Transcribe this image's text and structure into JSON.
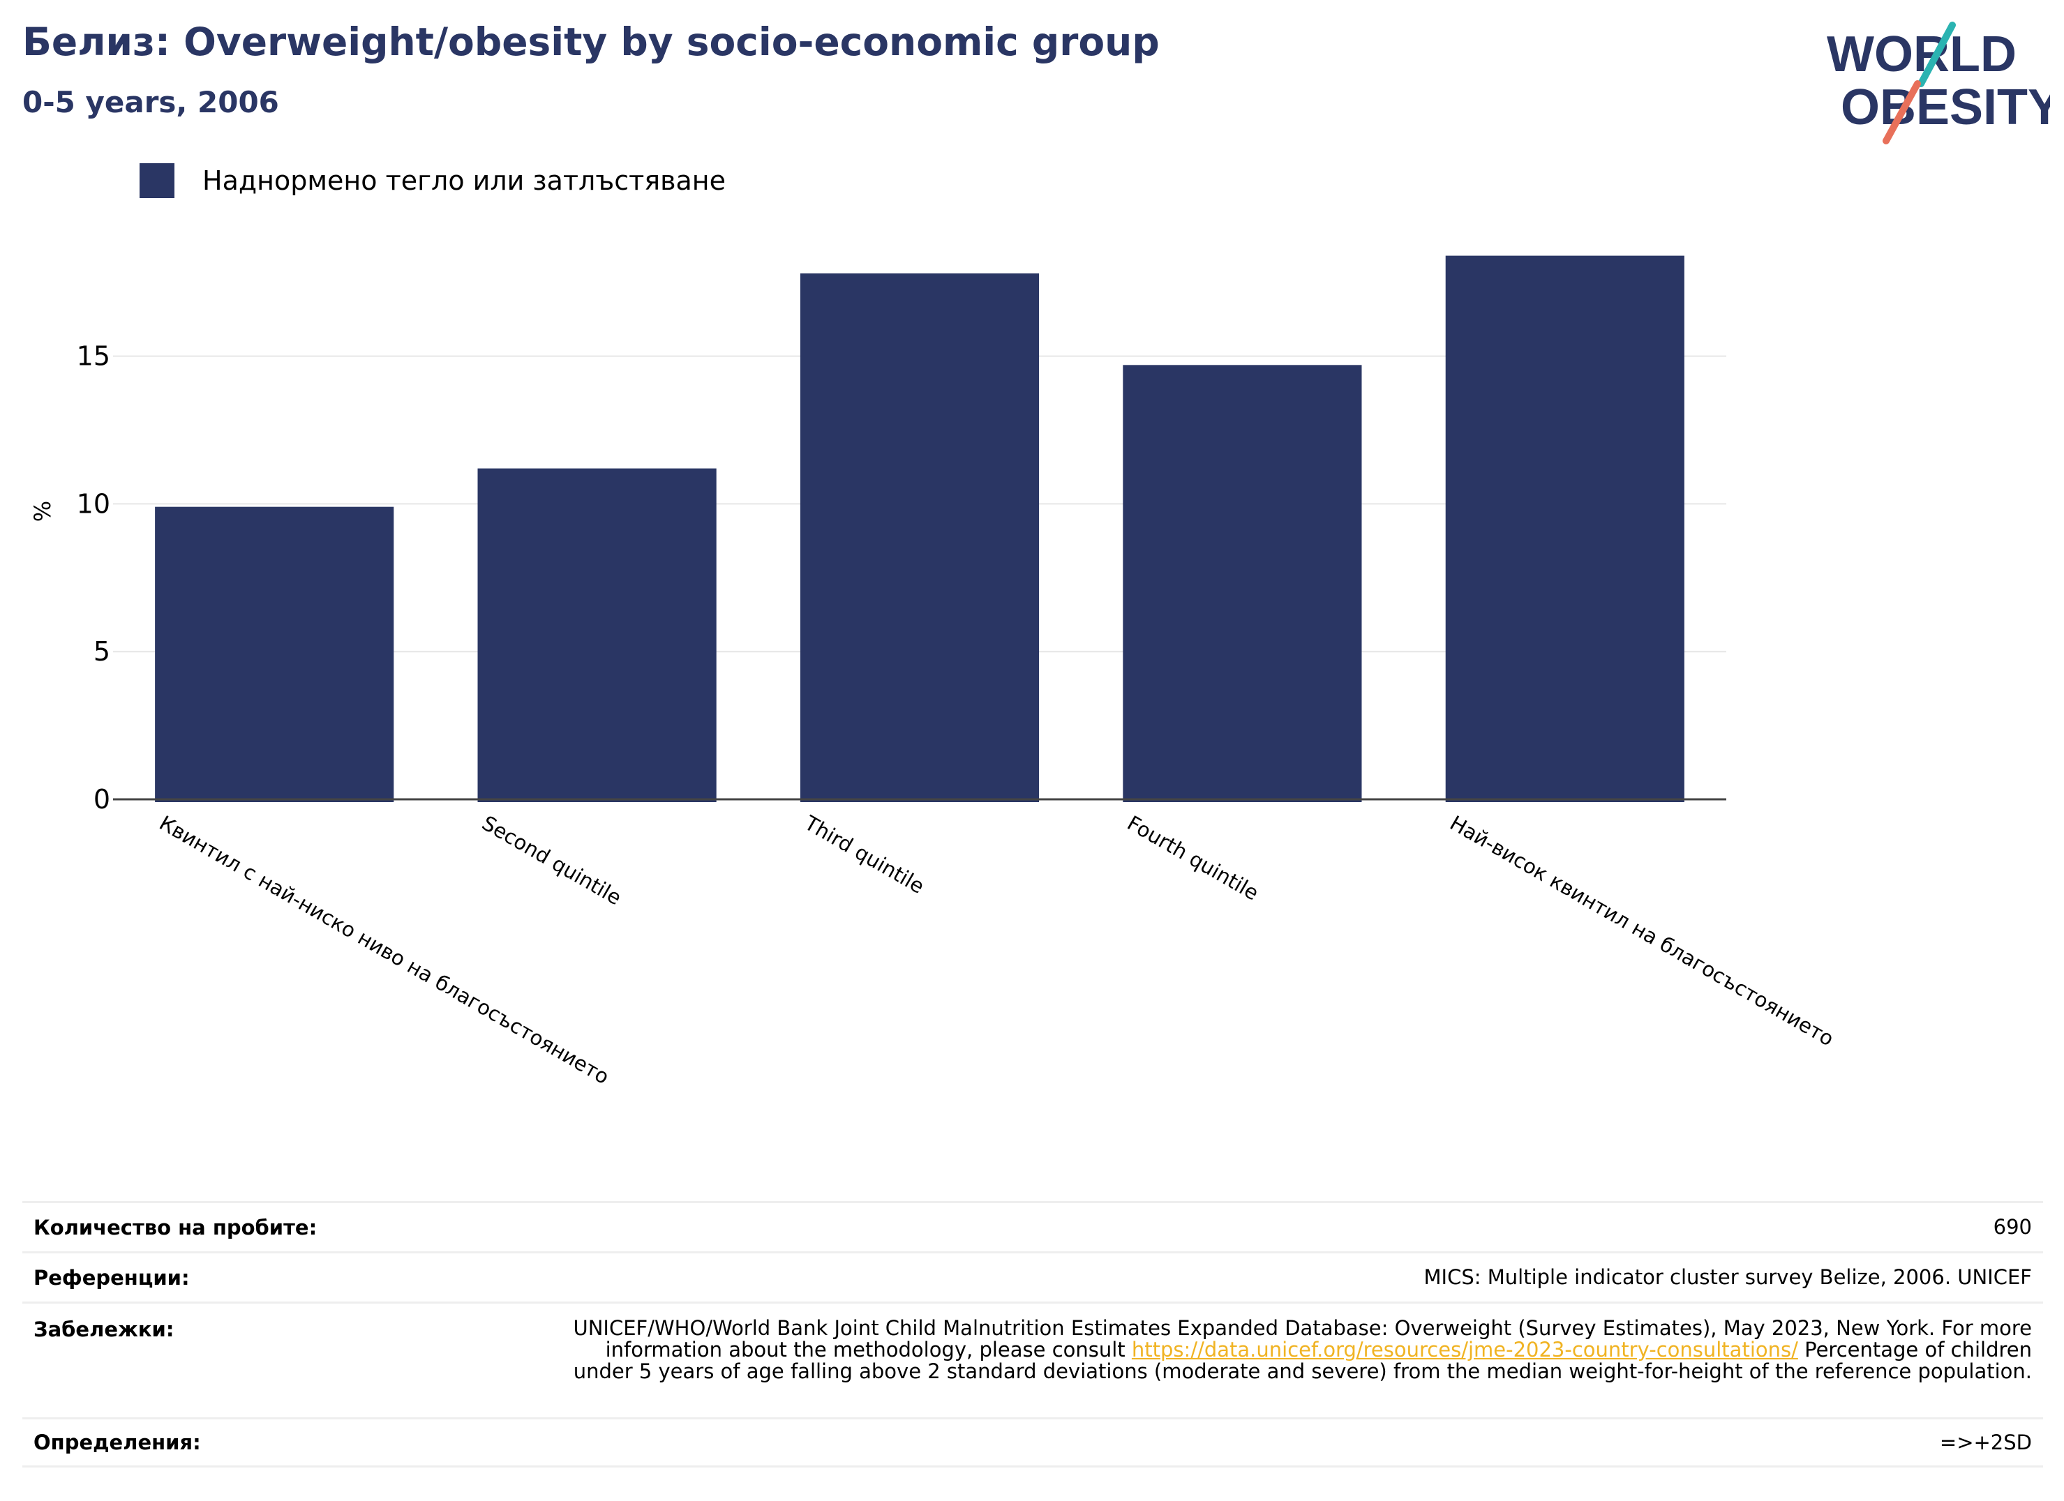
{
  "header": {
    "title": "Белиз: Overweight/obesity by socio-economic group",
    "subtitle": "0-5 years, 2006"
  },
  "logo": {
    "line1": "WORLD",
    "line2": "OBESITY",
    "icon": "world-obesity-logo"
  },
  "colors": {
    "bar": "#2a3664",
    "title": "#2a3664",
    "logo_teal": "#2bb3b1",
    "logo_coral": "#e8705a",
    "link": "#f0b323"
  },
  "chart_data": {
    "type": "bar",
    "title": "Белиз: Overweight/obesity by socio-economic group",
    "subtitle": "0-5 years, 2006",
    "categories": [
      "Квинтил с най-ниско ниво на благосъстоянието",
      "Second quintile",
      "Third quintile",
      "Fourth quintile",
      "Най-висок квинтил на благосъстоянието"
    ],
    "series": [
      {
        "name": "Наднормено тегло или затлъстяване",
        "values": [
          9.9,
          11.2,
          17.8,
          14.7,
          18.4
        ]
      }
    ],
    "ylabel": "%",
    "xlabel": "",
    "ylim": [
      0,
      19.5
    ],
    "yticks": [
      0,
      5,
      10,
      15
    ],
    "grid": true,
    "legend_position": "top-left"
  },
  "footer": {
    "sample_label": "Количество на пробите:",
    "sample_value": "690",
    "references_label": "Референции:",
    "references_value": "MICS: Multiple indicator cluster survey Belize, 2006. UNICEF",
    "notes_label": "Забележки:",
    "notes_text_before": "UNICEF/WHO/World Bank Joint Child Malnutrition Estimates Expanded Database: Overweight (Survey Estimates), May 2023, New York. For more information about the methodology, please consult ",
    "notes_link": "https://data.unicef.org/resources/jme-2023-country-consultations/",
    "notes_text_after": " Percentage of children under 5 years of age falling above 2 standard deviations (moderate and severe) from the median weight-for-height of the reference population.",
    "definitions_label": "Определения:",
    "definitions_value": "=>+2SD"
  }
}
